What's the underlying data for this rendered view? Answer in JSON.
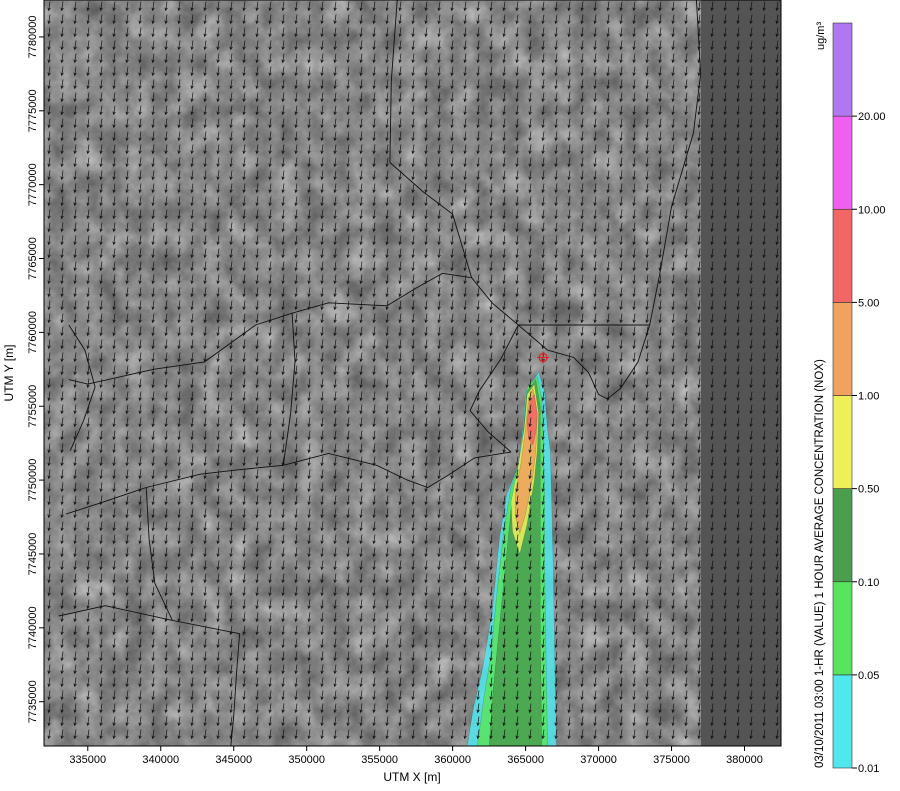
{
  "chart_data": {
    "type": "heatmap",
    "xlabel": "UTM X [m]",
    "ylabel": "UTM Y [m]",
    "xlim": [
      332000,
      382500
    ],
    "ylim": [
      7732000,
      7782500
    ],
    "x_ticks": [
      335000,
      340000,
      345000,
      350000,
      355000,
      360000,
      365000,
      370000,
      375000,
      380000
    ],
    "y_ticks": [
      7735000,
      7740000,
      7745000,
      7750000,
      7755000,
      7760000,
      7765000,
      7770000,
      7775000,
      7780000
    ],
    "legend": {
      "title": "03/10/2011 03:00 1-HR (VALUE) 1 HOUR AVERAGE CONCENTRATION (NOX)",
      "unit": "ug/m³",
      "levels": [
        0.01,
        0.05,
        0.1,
        0.5,
        1.0,
        5.0,
        10.0,
        20.0
      ],
      "level_labels": [
        "0.01",
        "0.05",
        "0.10",
        "0.50",
        "1.00",
        "5.00",
        "10.00",
        "20.00"
      ],
      "colors": [
        "#50e8ee",
        "#58e45e",
        "#4a9e4e",
        "#eef05a",
        "#f0a25e",
        "#f26666",
        "#f060f0",
        "#b078f0"
      ]
    },
    "source": {
      "x": 366200,
      "y": 7758300
    },
    "plume_contours": [
      {
        "level": 0.01,
        "polygon": [
          [
            365900,
            7757300
          ],
          [
            366300,
            7756000
          ],
          [
            366500,
            7753500
          ],
          [
            366700,
            7752000
          ],
          [
            366800,
            7748000
          ],
          [
            366900,
            7744000
          ],
          [
            367000,
            7738000
          ],
          [
            367100,
            7733000
          ],
          [
            367100,
            7732000
          ],
          [
            361000,
            7732000
          ],
          [
            361400,
            7734500
          ],
          [
            362000,
            7737000
          ],
          [
            362700,
            7741000
          ],
          [
            363200,
            7746000
          ],
          [
            363700,
            7749000
          ],
          [
            364500,
            7751000
          ],
          [
            364800,
            7753500
          ],
          [
            365000,
            7756000
          ]
        ]
      },
      {
        "level": 0.05,
        "polygon": [
          [
            365800,
            7757000
          ],
          [
            366100,
            7755500
          ],
          [
            366200,
            7753000
          ],
          [
            366300,
            7749000
          ],
          [
            366300,
            7744000
          ],
          [
            366400,
            7738000
          ],
          [
            366500,
            7732000
          ],
          [
            361700,
            7732000
          ],
          [
            362100,
            7735000
          ],
          [
            362600,
            7738000
          ],
          [
            363000,
            7742000
          ],
          [
            363500,
            7746500
          ],
          [
            364000,
            7749500
          ],
          [
            364700,
            7751500
          ],
          [
            364900,
            7754000
          ],
          [
            365100,
            7756300
          ]
        ]
      },
      {
        "level": 0.1,
        "polygon": [
          [
            365700,
            7756800
          ],
          [
            366000,
            7755000
          ],
          [
            366000,
            7752500
          ],
          [
            366000,
            7749000
          ],
          [
            366000,
            7745000
          ],
          [
            366000,
            7740000
          ],
          [
            366100,
            7732000
          ],
          [
            362500,
            7732000
          ],
          [
            362800,
            7736000
          ],
          [
            363200,
            7740000
          ],
          [
            363600,
            7744000
          ],
          [
            364000,
            7748000
          ],
          [
            364600,
            7751000
          ],
          [
            364900,
            7753800
          ],
          [
            365100,
            7756000
          ]
        ]
      },
      {
        "level": 0.5,
        "polygon": [
          [
            365600,
            7756500
          ],
          [
            365900,
            7754500
          ],
          [
            365800,
            7752000
          ],
          [
            365600,
            7750000
          ],
          [
            365100,
            7747000
          ],
          [
            364600,
            7745000
          ],
          [
            364100,
            7746500
          ],
          [
            364000,
            7748500
          ],
          [
            364500,
            7751000
          ],
          [
            364900,
            7753500
          ],
          [
            365100,
            7755800
          ]
        ]
      },
      {
        "level": 1.0,
        "polygon": [
          [
            365500,
            7756200
          ],
          [
            365800,
            7754300
          ],
          [
            365700,
            7752000
          ],
          [
            365500,
            7750300
          ],
          [
            365000,
            7747700
          ],
          [
            364600,
            7746400
          ],
          [
            364300,
            7747500
          ],
          [
            364300,
            7749200
          ],
          [
            364700,
            7751200
          ],
          [
            365000,
            7753500
          ],
          [
            365200,
            7755500
          ]
        ]
      },
      {
        "level": 5.0,
        "polygon": [
          [
            365600,
            7755800
          ],
          [
            365800,
            7754500
          ],
          [
            365700,
            7753200
          ],
          [
            365500,
            7752400
          ],
          [
            365200,
            7752800
          ],
          [
            365100,
            7754000
          ],
          [
            365300,
            7755300
          ]
        ]
      }
    ],
    "wind": {
      "direction_to": "south",
      "u_nominal": -0.15,
      "v_nominal": -1.0
    },
    "boundary_lines": [
      [
        [
          356200,
          7782500
        ],
        [
          355800,
          7777000
        ],
        [
          355700,
          7771500
        ],
        [
          358000,
          7769500
        ],
        [
          360000,
          7768000
        ],
        [
          361300,
          7763700
        ]
      ],
      [
        [
          361300,
          7763700
        ],
        [
          362700,
          7762000
        ],
        [
          364500,
          7760500
        ]
      ],
      [
        [
          364500,
          7760500
        ],
        [
          373500,
          7760500
        ]
      ],
      [
        [
          361300,
          7763700
        ],
        [
          359300,
          7764000
        ],
        [
          357500,
          7763000
        ],
        [
          355500,
          7761800
        ],
        [
          351500,
          7762000
        ],
        [
          349000,
          7761300
        ],
        [
          346500,
          7760500
        ],
        [
          343000,
          7758000
        ],
        [
          339500,
          7757500
        ],
        [
          335000,
          7756500
        ],
        [
          333700,
          7756800
        ]
      ],
      [
        [
          349000,
          7761300
        ],
        [
          349200,
          7758000
        ],
        [
          348900,
          7754500
        ],
        [
          348400,
          7751000
        ]
      ],
      [
        [
          333700,
          7760500
        ],
        [
          334800,
          7758800
        ],
        [
          335500,
          7756300
        ],
        [
          334700,
          7754000
        ],
        [
          333800,
          7752000
        ]
      ],
      [
        [
          348400,
          7751000
        ],
        [
          351500,
          7751800
        ],
        [
          354800,
          7751000
        ],
        [
          356900,
          7750000
        ],
        [
          358300,
          7749500
        ],
        [
          359800,
          7750400
        ],
        [
          361500,
          7751500
        ],
        [
          364000,
          7751900
        ]
      ],
      [
        [
          348400,
          7751000
        ],
        [
          345300,
          7750700
        ],
        [
          342700,
          7750400
        ],
        [
          339000,
          7749500
        ],
        [
          336000,
          7748500
        ],
        [
          333500,
          7747700
        ]
      ],
      [
        [
          339000,
          7749500
        ],
        [
          339200,
          7746000
        ],
        [
          339600,
          7743000
        ],
        [
          340800,
          7740500
        ],
        [
          345400,
          7739600
        ]
      ],
      [
        [
          333000,
          7740800
        ],
        [
          336200,
          7741500
        ],
        [
          340800,
          7740500
        ]
      ],
      [
        [
          345400,
          7739600
        ],
        [
          345200,
          7737000
        ],
        [
          345000,
          7734000
        ],
        [
          344800,
          7732000
        ]
      ],
      [
        [
          364000,
          7751900
        ],
        [
          362400,
          7753300
        ],
        [
          361200,
          7754700
        ],
        [
          361800,
          7756000
        ],
        [
          363300,
          7758200
        ],
        [
          364500,
          7760500
        ]
      ],
      [
        [
          364500,
          7760500
        ],
        [
          366500,
          7758800
        ],
        [
          368300,
          7758300
        ],
        [
          369300,
          7757300
        ],
        [
          370000,
          7755800
        ],
        [
          370600,
          7755500
        ],
        [
          371500,
          7756200
        ],
        [
          372700,
          7758000
        ],
        [
          373500,
          7760500
        ],
        [
          374200,
          7764000
        ],
        [
          375000,
          7768500
        ],
        [
          376500,
          7773500
        ],
        [
          377000,
          7777500
        ],
        [
          376700,
          7782500
        ]
      ]
    ]
  }
}
